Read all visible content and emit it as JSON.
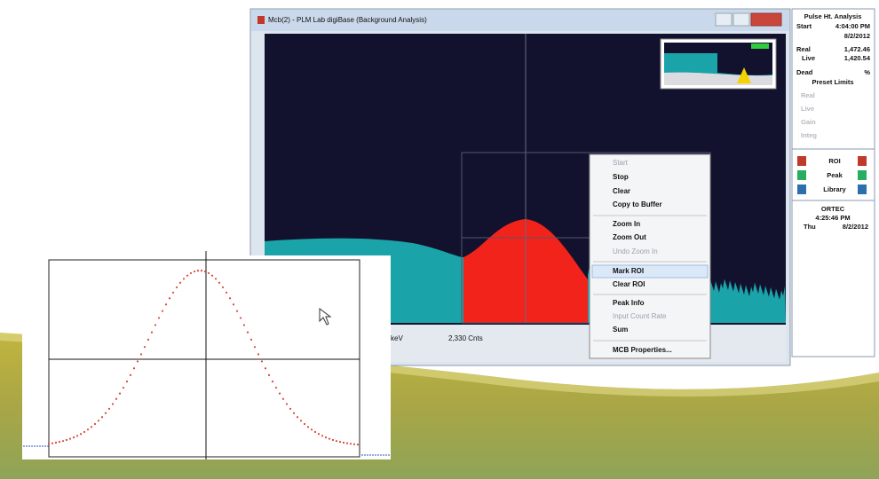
{
  "window": {
    "title": "Mcb(2) - PLM Lab digiBase (Background Analysis)",
    "status": {
      "unit": "keV",
      "counts": "2,330 Cnts"
    }
  },
  "side_panel": {
    "heading": "Pulse Ht. Analysis",
    "start_label": "Start",
    "start_time": "4:04:00 PM",
    "start_date": "8/2/2012",
    "real_label": "Real",
    "real_value": "1,472.46",
    "live_label": "Live",
    "live_value": "1,420.54",
    "dead_label": "Dead",
    "dead_unit": "%",
    "preset_heading": "Preset Limits",
    "presets": [
      "Real",
      "Live",
      "Gain",
      "Integ"
    ],
    "buttons": [
      "ROI",
      "Peak",
      "Library"
    ],
    "brand": "ORTEC",
    "clock_time": "4:25:46 PM",
    "clock_day": "Thu",
    "clock_date": "8/2/2012"
  },
  "context_menu": {
    "items": [
      {
        "label": "Start",
        "enabled": false
      },
      {
        "label": "Stop",
        "enabled": true
      },
      {
        "label": "Clear",
        "enabled": true
      },
      {
        "label": "Copy to Buffer",
        "enabled": true
      },
      {
        "label": "Zoom In",
        "enabled": true
      },
      {
        "label": "Zoom Out",
        "enabled": true
      },
      {
        "label": "Undo Zoom In",
        "enabled": false
      },
      {
        "label": "Mark ROI",
        "enabled": true
      },
      {
        "label": "Clear ROI",
        "enabled": true
      },
      {
        "label": "Peak Info",
        "enabled": true
      },
      {
        "label": "Input Count Rate",
        "enabled": false
      },
      {
        "label": "Sum",
        "enabled": true
      },
      {
        "label": "MCB Properties...",
        "enabled": true
      }
    ]
  }
}
